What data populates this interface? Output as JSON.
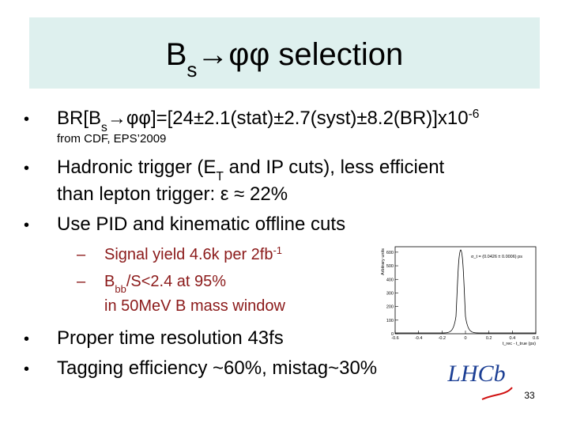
{
  "title": {
    "runs": [
      {
        "t": "B"
      },
      {
        "t": "s",
        "pos": "sub"
      },
      {
        "t": "→φφ selection"
      }
    ]
  },
  "bullets": [
    {
      "lines": [
        [
          {
            "t": "BR[B"
          },
          {
            "t": "s",
            "pos": "sub"
          },
          {
            "t": "→φφ]=[24±2.1(stat)±2.7(syst)±8.2(BR)]x10"
          },
          {
            "t": "-6",
            "pos": "sup"
          }
        ]
      ]
    },
    {
      "lines": [
        [
          {
            "t": "Hadronic trigger (E"
          },
          {
            "t": "T",
            "pos": "sub"
          },
          {
            "t": " and IP cuts), less efficient"
          }
        ],
        [
          {
            "t": "than lepton trigger: ε ≈ 22%"
          }
        ]
      ]
    },
    {
      "lines": [
        [
          {
            "t": "Use PID and kinematic offline cuts"
          }
        ]
      ]
    },
    {
      "lines": [
        [
          {
            "t": "Proper time resolution 43fs"
          }
        ]
      ]
    },
    {
      "lines": [
        [
          {
            "t": "Tagging efficiency ~60%, mistag~30%"
          }
        ]
      ]
    }
  ],
  "note": "from CDF, EPS’2009",
  "sub_bullets": [
    {
      "lines": [
        [
          {
            "t": "Signal yield 4.6k per 2fb"
          },
          {
            "t": "-1",
            "pos": "sup"
          }
        ]
      ]
    },
    {
      "lines": [
        [
          {
            "t": "B"
          },
          {
            "t": "bb",
            "pos": "sub"
          },
          {
            "t": "/S<2.4 at 95%"
          }
        ],
        [
          {
            "t": "in 50MeV B mass window"
          }
        ]
      ]
    }
  ],
  "inset": {
    "annotation": "σ_t = (0.0426 ± 0.0006) ps",
    "y_label": "Arbitrary units",
    "x_label": "t_rec - t_true (ps)",
    "xticks": [
      -0.6,
      -0.4,
      -0.2,
      0,
      0.2,
      0.4,
      0.6
    ],
    "yticks": [
      0,
      100,
      200,
      300,
      400,
      500,
      600
    ]
  },
  "logo": "LHCb",
  "page_number": "33"
}
